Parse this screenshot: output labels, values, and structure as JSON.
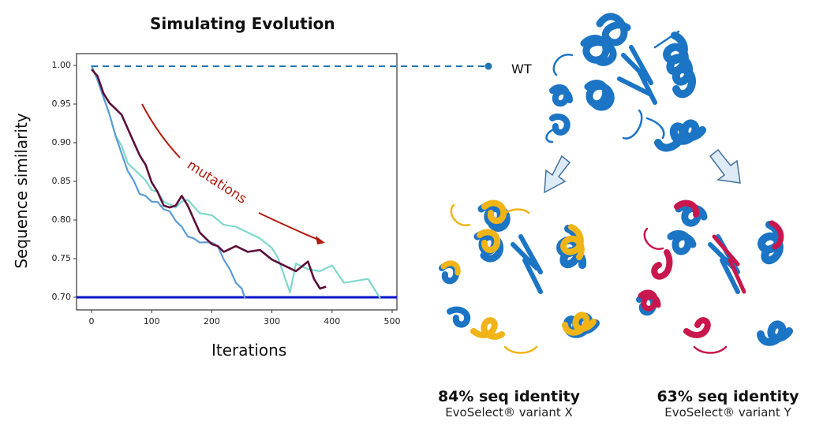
{
  "figure": {
    "chart_title": "Simulating Evolution",
    "annotation": "mutations",
    "wt_label": "WT",
    "variants": [
      {
        "title": "84% seq identity",
        "subtitle": "EvoSelect® variant X",
        "overlay_color": "#f0b416"
      },
      {
        "title": "63% seq identity",
        "subtitle": "EvoSelect® variant Y",
        "overlay_color": "#c8174c"
      }
    ],
    "colors": {
      "wt_protein": "#1b74c4",
      "arrow_fill": "#deeaf6",
      "arrow_stroke": "#41719c",
      "annotation": "#b01c10",
      "threshold": "#0a14c8",
      "wt_dashed": "#1f77b4"
    }
  },
  "chart_data": {
    "type": "line",
    "title": "Simulating Evolution",
    "xlabel": "Iterations",
    "ylabel": "Sequence similarity",
    "xlim": [
      -25,
      510
    ],
    "ylim": [
      0.685,
      1.015
    ],
    "xticks": [
      "0",
      "100",
      "200",
      "300",
      "400",
      "500"
    ],
    "yticks": [
      "1.00",
      "0.95",
      "0.90",
      "0.85",
      "0.80",
      "0.75",
      "0.70"
    ],
    "grid": false,
    "reference_lines": [
      {
        "name": "WT (1.00)",
        "y": 0.997,
        "style": "dashed",
        "color": "#1f77b4"
      },
      {
        "name": "threshold",
        "y": 0.7,
        "style": "solid",
        "color": "#0a14c8"
      }
    ],
    "series": [
      {
        "name": "run 1 (blue)",
        "color": "#5b9bd5",
        "x": [
          0,
          10,
          20,
          30,
          40,
          50,
          60,
          70,
          80,
          90,
          100,
          110,
          120,
          130,
          140,
          150,
          160,
          170,
          180,
          190,
          200,
          210,
          220,
          230,
          240,
          250,
          255
        ],
        "y": [
          1.0,
          0.98,
          0.96,
          0.935,
          0.91,
          0.885,
          0.865,
          0.85,
          0.835,
          0.83,
          0.825,
          0.822,
          0.815,
          0.81,
          0.8,
          0.79,
          0.78,
          0.775,
          0.772,
          0.77,
          0.772,
          0.765,
          0.75,
          0.735,
          0.72,
          0.71,
          0.7
        ]
      },
      {
        "name": "run 2 (dark purple)",
        "color": "#5a0f3a",
        "x": [
          0,
          10,
          20,
          30,
          40,
          50,
          60,
          70,
          80,
          90,
          100,
          110,
          120,
          130,
          140,
          150,
          160,
          170,
          180,
          190,
          200,
          210,
          220,
          240,
          260,
          280,
          300,
          320,
          340,
          360,
          370,
          380,
          390
        ],
        "y": [
          0.995,
          0.985,
          0.965,
          0.95,
          0.945,
          0.935,
          0.92,
          0.9,
          0.885,
          0.87,
          0.85,
          0.835,
          0.82,
          0.815,
          0.82,
          0.83,
          0.82,
          0.8,
          0.785,
          0.775,
          0.77,
          0.765,
          0.76,
          0.765,
          0.76,
          0.76,
          0.75,
          0.74,
          0.735,
          0.745,
          0.725,
          0.71,
          0.715
        ]
      },
      {
        "name": "run 3 (turquoise)",
        "color": "#7dd8cc",
        "x": [
          0,
          10,
          20,
          30,
          40,
          50,
          60,
          70,
          80,
          90,
          100,
          110,
          120,
          140,
          150,
          160,
          180,
          200,
          220,
          240,
          260,
          280,
          300,
          310,
          320,
          330,
          340,
          360,
          380,
          400,
          420,
          440,
          460,
          470,
          480
        ],
        "y": [
          1.0,
          0.98,
          0.96,
          0.935,
          0.91,
          0.895,
          0.875,
          0.865,
          0.86,
          0.85,
          0.84,
          0.835,
          0.825,
          0.815,
          0.825,
          0.825,
          0.81,
          0.805,
          0.795,
          0.79,
          0.785,
          0.775,
          0.765,
          0.75,
          0.73,
          0.705,
          0.745,
          0.735,
          0.735,
          0.74,
          0.72,
          0.72,
          0.725,
          0.71,
          0.7
        ]
      }
    ]
  }
}
